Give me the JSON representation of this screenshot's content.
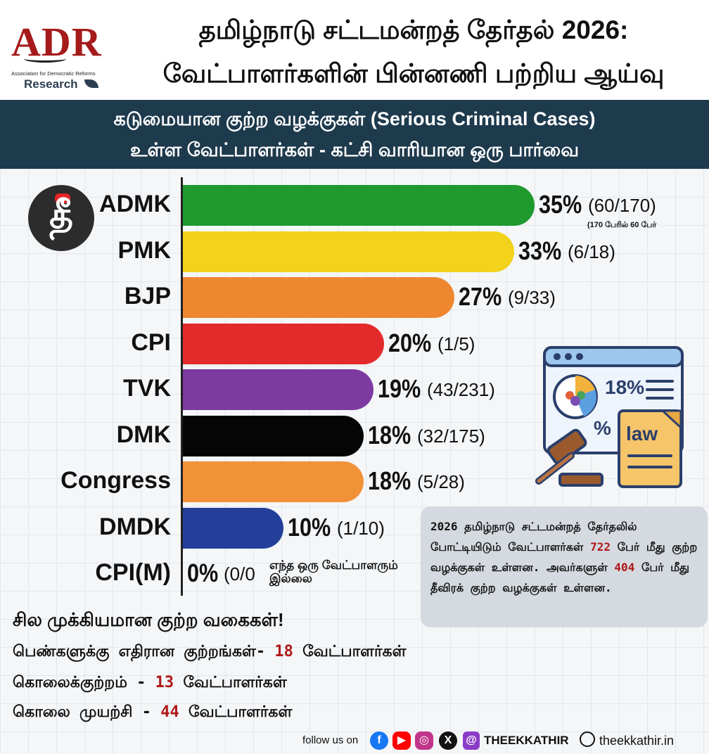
{
  "header": {
    "logo_text": "ADR",
    "logo_subtitle": "Association for Democratic Reforms",
    "logo_research": "Research",
    "title_line1": "தமிழ்நாடு சட்டமன்றத் தேர்தல் 2026:",
    "title_line2": "வேட்பாளர்களின் பின்னணி பற்றிய ஆய்வு"
  },
  "banner": {
    "line1": "கடுமையான குற்ற வழக்குகள் (Serious Criminal Cases)",
    "line2": "உள்ள வேட்பாளர்கள் - கட்சி வாரியான ஒரு பார்வை"
  },
  "chart_data": {
    "type": "bar",
    "orientation": "horizontal",
    "categories": [
      "ADMK",
      "PMK",
      "BJP",
      "CPI",
      "TVK",
      "DMK",
      "Congress",
      "DMDK",
      "CPI(M)"
    ],
    "values": [
      35,
      33,
      27,
      20,
      19,
      18,
      18,
      10,
      0
    ],
    "value_labels": [
      "35%",
      "33%",
      "27%",
      "20%",
      "19%",
      "18%",
      "18%",
      "10%",
      "0%"
    ],
    "fractions": [
      "(60/170)",
      "(6/18)",
      "(9/33)",
      "(1/5)",
      "(43/231)",
      "(32/175)",
      "(5/28)",
      "(1/10)",
      "(0/0"
    ],
    "colors": [
      "#1e9a2e",
      "#f2d21a",
      "#ef8630",
      "#e32b2b",
      "#7d3aa0",
      "#050505",
      "#f29238",
      "#243f9a",
      "#cccccc"
    ],
    "xlim": [
      0,
      35
    ],
    "annotations": {
      "admk_note": "(170 பேரில் 60 பேர்",
      "cpim_note": "எந்த ஒரு வேட்பாளரும் இல்லை"
    }
  },
  "illustration": {
    "percent_label": "18%",
    "percent_symbol": "%",
    "law_label": "law"
  },
  "info_box": {
    "part1": "2026 தமிழ்நாடு சட்டமன்றத் தேர்தலில் போட்டியிடும் வேட்பாளர்கள் ",
    "num1": "722",
    "part2": " பேர் மீது குற்ற வழக்குகள் உள்ளன. அவர்களுள் ",
    "num2": "404",
    "part3": " பேர் மீது தீவிரக் குற்ற வழக்குகள் உள்ளன."
  },
  "crimes": {
    "title": "சில முக்கியமான குற்ற வகைகள்!",
    "items": [
      {
        "label": "பெண்களுக்கு எதிரான குற்றங்கள்- ",
        "count": "18",
        "suffix": " வேட்பாளர்கள்"
      },
      {
        "label": "கொலைக்குற்றம் - ",
        "count": "13",
        "suffix": " வேட்பாளர்கள்"
      },
      {
        "label": "கொலை முயற்சி - ",
        "count": "44",
        "suffix": " வேட்பாளர்கள்"
      }
    ]
  },
  "footer": {
    "follow_text": "follow us on",
    "brand": "THEEKKATHIR",
    "website": "theekkathir.in",
    "icons": [
      "facebook-icon",
      "youtube-icon",
      "instagram-icon",
      "x-icon",
      "threads-icon",
      "globe-icon"
    ],
    "icon_colors": {
      "facebook": "#1877f2",
      "youtube": "#ff0000",
      "instagram": "#c1358a",
      "x": "#111111"
    }
  }
}
